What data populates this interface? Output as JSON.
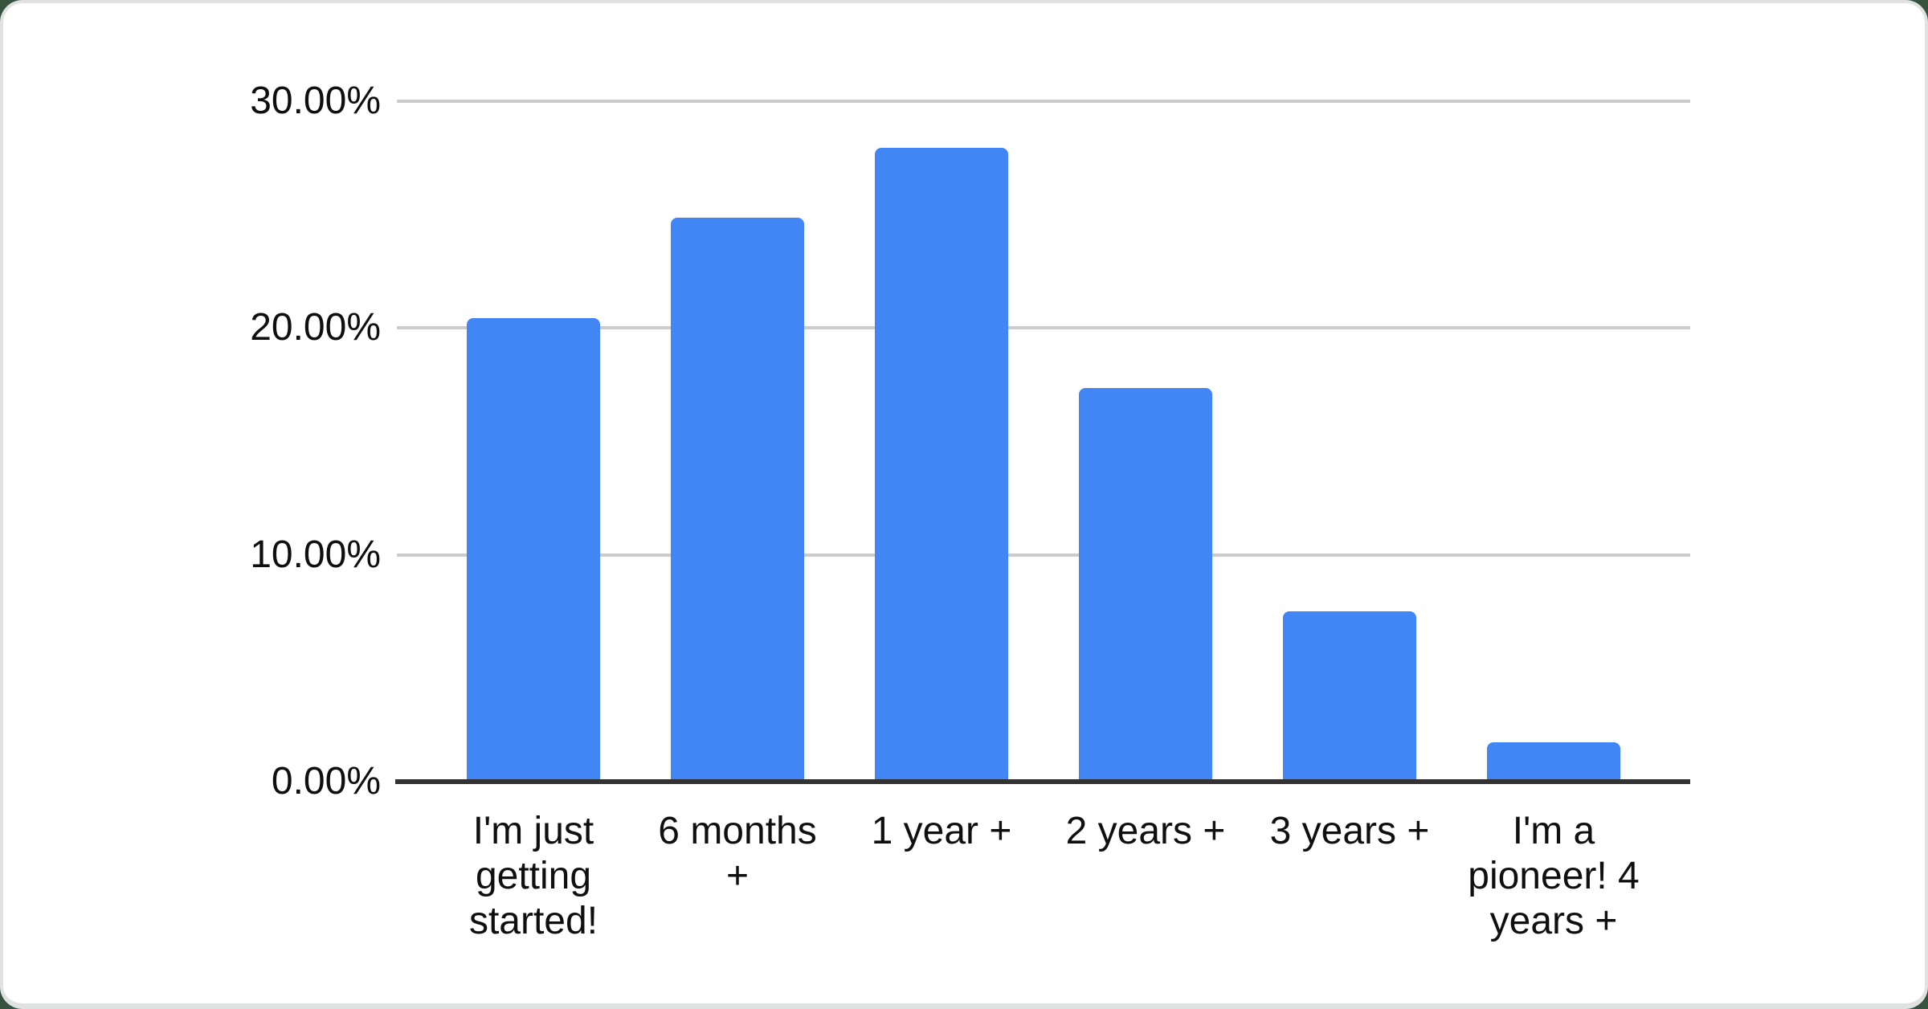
{
  "chart_data": {
    "type": "bar",
    "title": "",
    "xlabel": "",
    "ylabel": "",
    "categories": [
      "I'm just getting started!",
      "6 months +",
      "1 year +",
      "2 years +",
      "3 years +",
      "I'm a pioneer! 4 years +"
    ],
    "values": [
      20.45,
      24.85,
      27.95,
      17.35,
      7.5,
      1.75
    ],
    "value_unit": "%",
    "ylim": [
      0,
      30
    ],
    "yticks": [
      "30.00%",
      "20.00%",
      "10.00%",
      "0.00%"
    ],
    "ytick_values": [
      30,
      20,
      10,
      0
    ],
    "grid": true,
    "legend": "none",
    "colors": {
      "bar": "#4285f4",
      "gridline": "#cccccc",
      "axis_line": "#333333",
      "label_text": "#0f0f0f",
      "card_background": "#ffffff",
      "page_background": "#37523f",
      "card_border": "#dfe2e0"
    }
  }
}
